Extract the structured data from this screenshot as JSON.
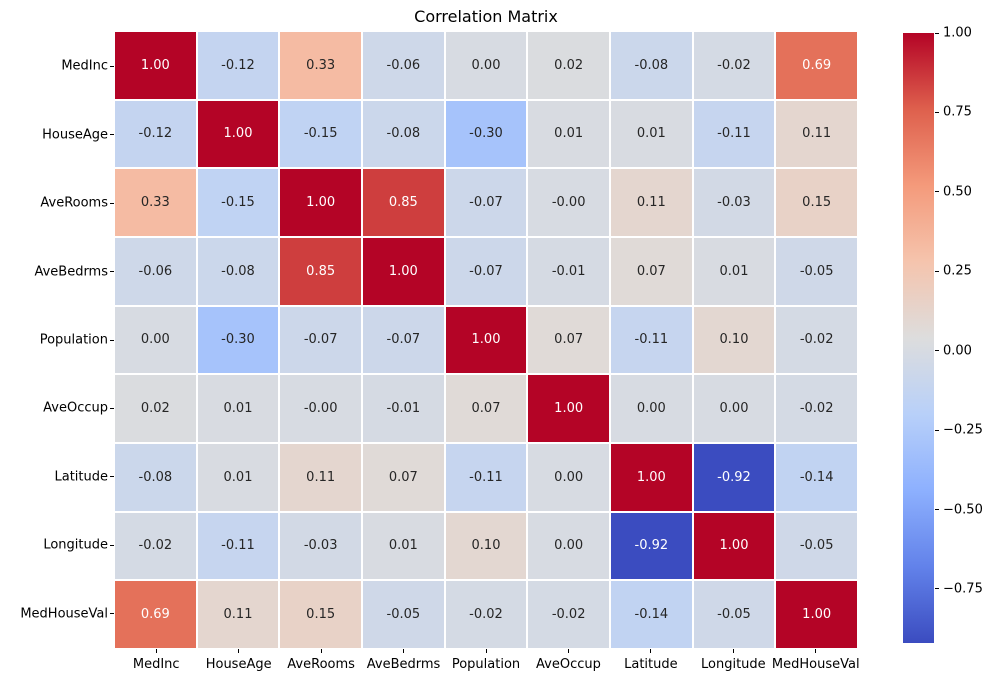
{
  "chart_data": {
    "type": "heatmap",
    "title": "Correlation Matrix",
    "x_categories": [
      "MedInc",
      "HouseAge",
      "AveRooms",
      "AveBedrms",
      "Population",
      "AveOccup",
      "Latitude",
      "Longitude",
      "MedHouseVal"
    ],
    "y_categories": [
      "MedInc",
      "HouseAge",
      "AveRooms",
      "AveBedrms",
      "Population",
      "AveOccup",
      "Latitude",
      "Longitude",
      "MedHouseVal"
    ],
    "values": [
      [
        1.0,
        -0.12,
        0.33,
        -0.06,
        0.0,
        0.02,
        -0.08,
        -0.02,
        0.69
      ],
      [
        -0.12,
        1.0,
        -0.15,
        -0.08,
        -0.3,
        0.01,
        0.01,
        -0.11,
        0.11
      ],
      [
        0.33,
        -0.15,
        1.0,
        0.85,
        -0.07,
        0.0,
        0.11,
        -0.03,
        0.15
      ],
      [
        -0.06,
        -0.08,
        0.85,
        1.0,
        -0.07,
        -0.01,
        0.07,
        0.01,
        -0.05
      ],
      [
        0.0,
        -0.3,
        -0.07,
        -0.07,
        1.0,
        0.07,
        -0.11,
        0.1,
        -0.02
      ],
      [
        0.02,
        0.01,
        0.0,
        -0.01,
        0.07,
        1.0,
        0.0,
        0.0,
        -0.02
      ],
      [
        -0.08,
        0.01,
        0.11,
        0.07,
        -0.11,
        0.0,
        1.0,
        -0.92,
        -0.14
      ],
      [
        -0.02,
        -0.11,
        -0.03,
        0.01,
        0.1,
        0.0,
        -0.92,
        1.0,
        -0.05
      ],
      [
        0.69,
        0.11,
        0.15,
        -0.05,
        -0.02,
        -0.02,
        -0.14,
        -0.05,
        1.0
      ]
    ],
    "value_labels": [
      [
        "1.00",
        "-0.12",
        "0.33",
        "-0.06",
        "0.00",
        "0.02",
        "-0.08",
        "-0.02",
        "0.69"
      ],
      [
        "-0.12",
        "1.00",
        "-0.15",
        "-0.08",
        "-0.30",
        "0.01",
        "0.01",
        "-0.11",
        "0.11"
      ],
      [
        "0.33",
        "-0.15",
        "1.00",
        "0.85",
        "-0.07",
        "-0.00",
        "0.11",
        "-0.03",
        "0.15"
      ],
      [
        "-0.06",
        "-0.08",
        "0.85",
        "1.00",
        "-0.07",
        "-0.01",
        "0.07",
        "0.01",
        "-0.05"
      ],
      [
        "0.00",
        "-0.30",
        "-0.07",
        "-0.07",
        "1.00",
        "0.07",
        "-0.11",
        "0.10",
        "-0.02"
      ],
      [
        "0.02",
        "0.01",
        "-0.00",
        "-0.01",
        "0.07",
        "1.00",
        "0.00",
        "0.00",
        "-0.02"
      ],
      [
        "-0.08",
        "0.01",
        "0.11",
        "0.07",
        "-0.11",
        "0.00",
        "1.00",
        "-0.92",
        "-0.14"
      ],
      [
        "-0.02",
        "-0.11",
        "-0.03",
        "0.01",
        "0.10",
        "0.00",
        "-0.92",
        "1.00",
        "-0.05"
      ],
      [
        "0.69",
        "0.11",
        "0.15",
        "-0.05",
        "-0.02",
        "-0.02",
        "-0.14",
        "-0.05",
        "1.00"
      ]
    ],
    "vmin": -0.92,
    "vmax": 1.0,
    "grid_on": false,
    "legend_position": "right-colorbar",
    "colormap": {
      "name": "coolwarm",
      "anchors": [
        {
          "t": 0.0,
          "color": "#3b4cc0"
        },
        {
          "t": 0.125,
          "color": "#6282ea"
        },
        {
          "t": 0.25,
          "color": "#8db0fe"
        },
        {
          "t": 0.375,
          "color": "#b8d0f9"
        },
        {
          "t": 0.5,
          "color": "#dddddd"
        },
        {
          "t": 0.625,
          "color": "#f5c4ad"
        },
        {
          "t": 0.75,
          "color": "#f49a7b"
        },
        {
          "t": 0.875,
          "color": "#de604d"
        },
        {
          "t": 1.0,
          "color": "#b40426"
        }
      ]
    },
    "annotation_colors": {
      "dark": "#262626",
      "light": "#ffffff"
    },
    "gridline_color": "#ffffff",
    "colorbar": {
      "tick_values": [
        1.0,
        0.75,
        0.5,
        0.25,
        0.0,
        -0.25,
        -0.5,
        -0.75
      ],
      "tick_labels": [
        "1.00",
        "0.75",
        "0.50",
        "0.25",
        "0.00",
        "−0.25",
        "−0.50",
        "−0.75"
      ]
    }
  }
}
